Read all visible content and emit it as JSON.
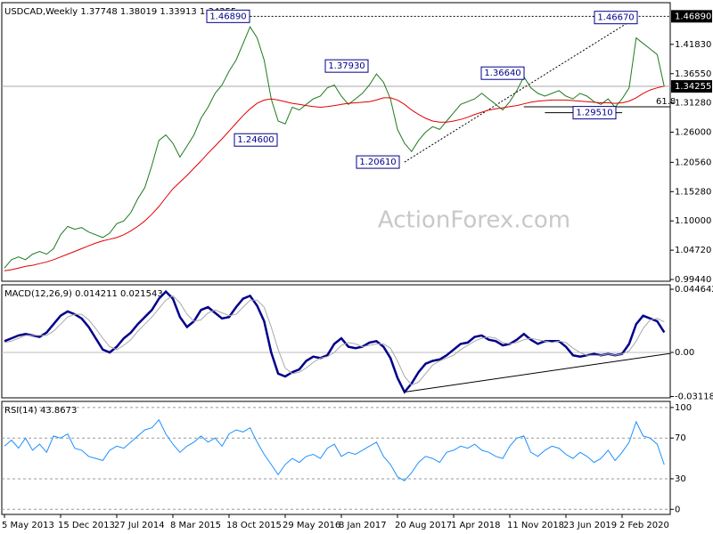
{
  "chart_data": [
    {
      "type": "line",
      "title": "USDCAD,Weekly 1.37748 1.38019 1.33913 1.34255",
      "watermark": "ActionForex.com",
      "categories": [
        "5 May 2013",
        null,
        null,
        null,
        null,
        null,
        null,
        null,
        "15 Dec 2013",
        null,
        null,
        null,
        null,
        null,
        null,
        null,
        "27 Jul 2014",
        null,
        null,
        null,
        null,
        null,
        null,
        null,
        "8 Mar 2015",
        null,
        null,
        null,
        null,
        null,
        null,
        null,
        "18 Oct 2015",
        null,
        null,
        null,
        null,
        null,
        null,
        null,
        "29 May 2016",
        null,
        null,
        null,
        null,
        null,
        null,
        null,
        "8 Jan 2017",
        null,
        null,
        null,
        null,
        null,
        null,
        null,
        "20 Aug 2017",
        null,
        null,
        null,
        null,
        null,
        null,
        null,
        "1 Apr 2018",
        null,
        null,
        null,
        null,
        null,
        null,
        null,
        "11 Nov 2018",
        null,
        null,
        null,
        null,
        null,
        null,
        null,
        "23 Jun 2019",
        null,
        null,
        null,
        null,
        null,
        null,
        null,
        "2 Feb 2020",
        null,
        null,
        null,
        null,
        null,
        null
      ],
      "series": [
        {
          "color": "#1f7a1f",
          "values": [
            1.015,
            1.03,
            1.035,
            1.03,
            1.04,
            1.045,
            1.04,
            1.05,
            1.075,
            1.09,
            1.085,
            1.088,
            1.08,
            1.075,
            1.07,
            1.078,
            1.095,
            1.1,
            1.115,
            1.14,
            1.16,
            1.2,
            1.245,
            1.255,
            1.24,
            1.215,
            1.235,
            1.255,
            1.285,
            1.305,
            1.33,
            1.345,
            1.37,
            1.39,
            1.42,
            1.45,
            1.43,
            1.39,
            1.32,
            1.28,
            1.275,
            1.305,
            1.3,
            1.31,
            1.32,
            1.325,
            1.34,
            1.345,
            1.325,
            1.31,
            1.32,
            1.33,
            1.345,
            1.365,
            1.35,
            1.32,
            1.265,
            1.24,
            1.225,
            1.245,
            1.26,
            1.27,
            1.265,
            1.28,
            1.295,
            1.31,
            1.315,
            1.32,
            1.33,
            1.32,
            1.31,
            1.3,
            1.315,
            1.335,
            1.36,
            1.34,
            1.33,
            1.325,
            1.33,
            1.335,
            1.325,
            1.32,
            1.33,
            1.325,
            1.315,
            1.31,
            1.32,
            1.305,
            1.32,
            1.34,
            1.43,
            1.42,
            1.41,
            1.4,
            1.34255
          ]
        },
        {
          "color": "#e00000",
          "values": [
            1.01,
            1.012,
            1.015,
            1.018,
            1.02,
            1.023,
            1.026,
            1.03,
            1.035,
            1.04,
            1.045,
            1.05,
            1.055,
            1.06,
            1.064,
            1.067,
            1.07,
            1.075,
            1.082,
            1.09,
            1.1,
            1.112,
            1.126,
            1.142,
            1.158,
            1.17,
            1.182,
            1.195,
            1.208,
            1.222,
            1.235,
            1.248,
            1.262,
            1.276,
            1.29,
            1.302,
            1.312,
            1.318,
            1.32,
            1.318,
            1.315,
            1.312,
            1.31,
            1.308,
            1.306,
            1.305,
            1.306,
            1.308,
            1.31,
            1.312,
            1.313,
            1.314,
            1.315,
            1.318,
            1.322,
            1.322,
            1.318,
            1.31,
            1.3,
            1.292,
            1.285,
            1.28,
            1.278,
            1.278,
            1.28,
            1.283,
            1.287,
            1.292,
            1.296,
            1.3,
            1.302,
            1.304,
            1.306,
            1.308,
            1.311,
            1.314,
            1.316,
            1.317,
            1.318,
            1.318,
            1.318,
            1.317,
            1.316,
            1.315,
            1.314,
            1.313,
            1.313,
            1.312,
            1.313,
            1.316,
            1.322,
            1.33,
            1.336,
            1.34,
            1.343
          ]
        }
      ],
      "ylim": [
        0.9912,
        1.4935
      ],
      "yticks": [
        {
          "value": 1.4183,
          "label": "1.41830"
        },
        {
          "value": 1.3655,
          "label": "1.36550"
        },
        {
          "value": 1.3128,
          "label": "1.31280"
        },
        {
          "value": 1.26,
          "label": "1.26000"
        },
        {
          "value": 1.2056,
          "label": "1.20560"
        },
        {
          "value": 1.1528,
          "label": "1.15280"
        },
        {
          "value": 1.1,
          "label": "1.10000"
        },
        {
          "value": 1.0472,
          "label": "1.04720"
        },
        {
          "value": 0.9944,
          "label": "0.99440"
        }
      ],
      "ref_line": {
        "value": 1.4689,
        "label": "1.46890"
      },
      "annotations": [
        {
          "value": 1.4689,
          "label": "1.46890"
        },
        {
          "value": 1.246,
          "label": "1.24600"
        },
        {
          "value": 1.3793,
          "label": "1.37930"
        },
        {
          "value": 1.2061,
          "label": "1.20610"
        },
        {
          "value": 1.3664,
          "label": "1.36640"
        },
        {
          "value": 1.2951,
          "label": "1.29510"
        },
        {
          "value": 1.4667,
          "label": "1.46670"
        }
      ],
      "fib_ratio": 61.8
    },
    {
      "type": "line",
      "title": "MACD(12,26,9) 0.014211 0.021543",
      "series": [
        {
          "color": "#00008b",
          "values": [
            0.008,
            0.01,
            0.012,
            0.013,
            0.012,
            0.011,
            0.014,
            0.02,
            0.026,
            0.029,
            0.027,
            0.024,
            0.018,
            0.01,
            0.002,
            0,
            0.004,
            0.01,
            0.014,
            0.02,
            0.025,
            0.03,
            0.038,
            0.043,
            0.038,
            0.025,
            0.018,
            0.022,
            0.03,
            0.032,
            0.028,
            0.024,
            0.025,
            0.032,
            0.038,
            0.04,
            0.033,
            0.022,
            0,
            -0.015,
            -0.017,
            -0.014,
            -0.012,
            -0.006,
            -0.003,
            -0.004,
            -0.002,
            0.006,
            0.01,
            0.004,
            0.003,
            0.004,
            0.007,
            0.008,
            0.004,
            -0.004,
            -0.018,
            -0.028,
            -0.022,
            -0.014,
            -0.008,
            -0.006,
            -0.005,
            -0.002,
            0.002,
            0.006,
            0.007,
            0.011,
            0.012,
            0.009,
            0.008,
            0.005,
            0.006,
            0.009,
            0.013,
            0.009,
            0.006,
            0.008,
            0.008,
            0.008,
            0.004,
            -0.002,
            -0.003,
            -0.002,
            -0.001,
            -0.002,
            -0.001,
            -0.002,
            -0.001,
            0.006,
            0.02,
            0.026,
            0.024,
            0.022,
            0.014211
          ]
        },
        {
          "color": "#a9a9a9",
          "values": [
            0.007,
            0.008,
            0.01,
            0.012,
            0.012,
            0.012,
            0.012,
            0.015,
            0.02,
            0.025,
            0.027,
            0.027,
            0.023,
            0.017,
            0.01,
            0.004,
            0.002,
            0.005,
            0.009,
            0.015,
            0.02,
            0.025,
            0.031,
            0.037,
            0.04,
            0.035,
            0.027,
            0.022,
            0.023,
            0.028,
            0.03,
            0.028,
            0.026,
            0.027,
            0.032,
            0.037,
            0.037,
            0.032,
            0.018,
            0.002,
            -0.011,
            -0.015,
            -0.014,
            -0.011,
            -0.007,
            -0.004,
            -0.003,
            0,
            0.005,
            0.007,
            0.006,
            0.004,
            0.005,
            0.006,
            0.006,
            0.003,
            -0.006,
            -0.017,
            -0.023,
            -0.021,
            -0.015,
            -0.009,
            -0.006,
            -0.004,
            -0.002,
            0.002,
            0.005,
            0.008,
            0.01,
            0.011,
            0.01,
            0.007,
            0.006,
            0.007,
            0.009,
            0.01,
            0.009,
            0.008,
            0.007,
            0.008,
            0.007,
            0.003,
            0,
            -0.002,
            -0.002,
            -0.002,
            -0.001,
            -0.002,
            -0.001,
            0.001,
            0.008,
            0.017,
            0.023,
            0.024,
            0.021543
          ]
        }
      ],
      "ylim": [
        -0.0321,
        0.0478
      ],
      "yticks": [
        0.044642,
        {
          "value": 0,
          "label": "0.00"
        },
        -0.031183
      ],
      "zero_line": true
    },
    {
      "type": "line",
      "title": "RSI(14) 43.8673",
      "series": [
        {
          "color": "#1e90ff",
          "values": [
            62,
            68,
            60,
            70,
            58,
            64,
            56,
            72,
            70,
            74,
            60,
            58,
            52,
            50,
            48,
            58,
            62,
            60,
            66,
            72,
            78,
            80,
            88,
            74,
            64,
            56,
            62,
            66,
            72,
            66,
            70,
            62,
            74,
            78,
            76,
            80,
            66,
            54,
            44,
            34,
            44,
            50,
            46,
            52,
            54,
            50,
            60,
            64,
            52,
            56,
            54,
            58,
            62,
            66,
            52,
            44,
            32,
            28,
            36,
            46,
            52,
            50,
            46,
            56,
            58,
            62,
            60,
            64,
            58,
            56,
            52,
            50,
            62,
            70,
            72,
            56,
            52,
            58,
            62,
            60,
            54,
            50,
            56,
            52,
            46,
            50,
            58,
            48,
            56,
            66,
            86,
            72,
            70,
            64,
            43.8673
          ]
        }
      ],
      "ylim": [
        -5,
        106
      ],
      "yticks": [
        100,
        70,
        30,
        0
      ],
      "grid": "dashed"
    }
  ]
}
